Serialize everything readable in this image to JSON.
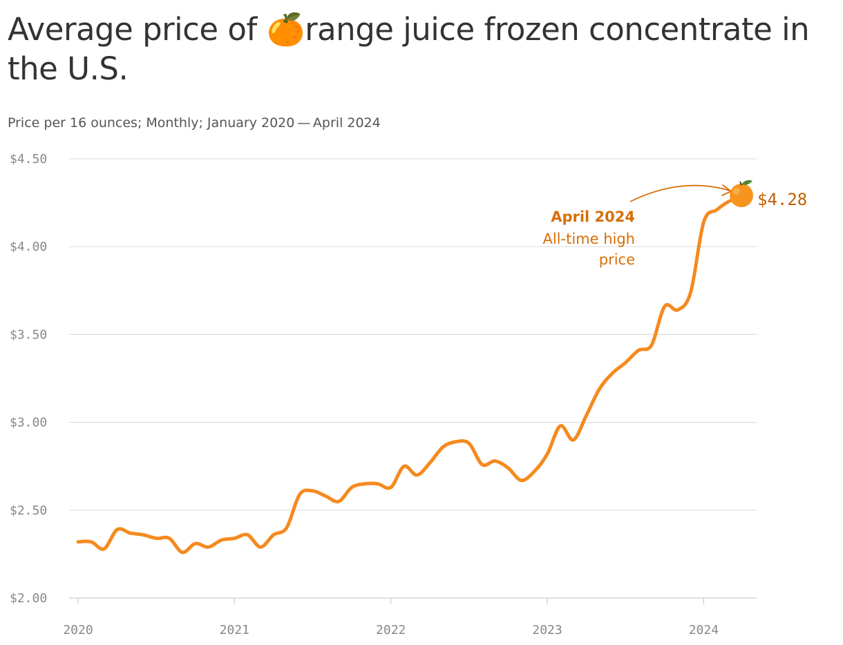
{
  "title": "Average price of 🍊range juice frozen concentrate in the U.S.",
  "subtitle": "Price per 16 ounces; Monthly; January 2020 — April 2024",
  "colors": {
    "line": "#f58a1f",
    "annotation": "#d76f07",
    "value_label": "#c25e00",
    "gridline": "#dddddd",
    "tick_text": "#888888"
  },
  "icons": {
    "marker": "tangerine-icon"
  },
  "annotation": {
    "date": "April 2024",
    "note_line1": "All-time high",
    "note_line2": "price",
    "value_label": "$4.28"
  },
  "chart_data": {
    "type": "line",
    "x_start": "2020-01",
    "x_end": "2024-04",
    "xlim": [
      "2020-01",
      "2024-04"
    ],
    "ylim": [
      2.0,
      4.5
    ],
    "yticks": [
      {
        "value": 2.0,
        "label": "$2.00"
      },
      {
        "value": 2.5,
        "label": "$2.50"
      },
      {
        "value": 3.0,
        "label": "$3.00"
      },
      {
        "value": 3.5,
        "label": "$3.50"
      },
      {
        "value": 4.0,
        "label": "$4.00"
      },
      {
        "value": 4.5,
        "label": "$4.50"
      }
    ],
    "xticks": [
      {
        "value": "2020-01",
        "label": "2020"
      },
      {
        "value": "2021-01",
        "label": "2021"
      },
      {
        "value": "2022-01",
        "label": "2022"
      },
      {
        "value": "2023-01",
        "label": "2023"
      },
      {
        "value": "2024-01",
        "label": "2024"
      }
    ],
    "grid": true,
    "x": [
      "2020-01",
      "2020-02",
      "2020-03",
      "2020-04",
      "2020-05",
      "2020-06",
      "2020-07",
      "2020-08",
      "2020-09",
      "2020-10",
      "2020-11",
      "2020-12",
      "2021-01",
      "2021-02",
      "2021-03",
      "2021-04",
      "2021-05",
      "2021-06",
      "2021-07",
      "2021-08",
      "2021-09",
      "2021-10",
      "2021-11",
      "2021-12",
      "2022-01",
      "2022-02",
      "2022-03",
      "2022-04",
      "2022-05",
      "2022-06",
      "2022-07",
      "2022-08",
      "2022-09",
      "2022-10",
      "2022-11",
      "2022-12",
      "2023-01",
      "2023-02",
      "2023-03",
      "2023-04",
      "2023-05",
      "2023-06",
      "2023-07",
      "2023-08",
      "2023-09",
      "2023-10",
      "2023-11",
      "2023-12",
      "2024-01",
      "2024-02",
      "2024-03",
      "2024-04"
    ],
    "values": [
      2.32,
      2.32,
      2.28,
      2.39,
      2.37,
      2.36,
      2.34,
      2.34,
      2.26,
      2.31,
      2.29,
      2.33,
      2.34,
      2.36,
      2.29,
      2.36,
      2.4,
      2.59,
      2.61,
      2.58,
      2.55,
      2.63,
      2.65,
      2.65,
      2.63,
      2.75,
      2.7,
      2.77,
      2.86,
      2.89,
      2.88,
      2.76,
      2.78,
      2.74,
      2.67,
      2.72,
      2.82,
      2.98,
      2.9,
      3.04,
      3.19,
      3.28,
      3.34,
      3.41,
      3.44,
      3.66,
      3.64,
      3.74,
      4.14,
      4.21,
      4.26,
      4.28
    ]
  }
}
